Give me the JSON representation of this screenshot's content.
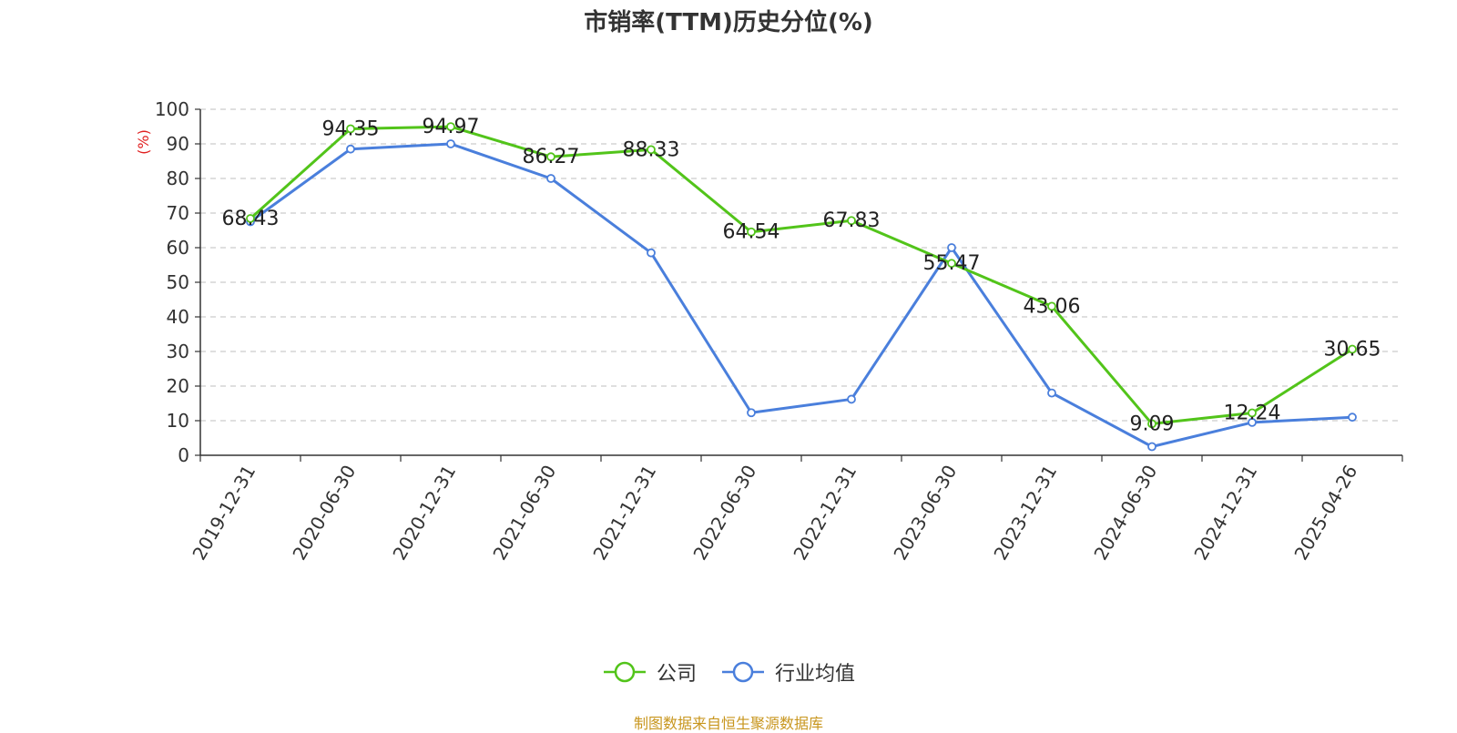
{
  "chart_data": {
    "type": "line",
    "title": "市销率(TTM)历史分位(%)",
    "ylabel": "(%)",
    "xlabel": "",
    "ylim": [
      0,
      100
    ],
    "yticks": [
      0,
      10,
      20,
      30,
      40,
      50,
      60,
      70,
      80,
      90,
      100
    ],
    "grid": true,
    "legend_position": "bottom",
    "categories": [
      "2019-12-31",
      "2020-06-30",
      "2020-12-31",
      "2021-06-30",
      "2021-12-31",
      "2022-06-30",
      "2022-12-31",
      "2023-06-30",
      "2023-12-31",
      "2024-06-30",
      "2024-12-31",
      "2025-04-26"
    ],
    "series": [
      {
        "name": "公司",
        "color": "#52c41a",
        "show_labels": true,
        "values": [
          68.43,
          94.35,
          94.97,
          86.27,
          88.33,
          64.54,
          67.83,
          55.47,
          43.06,
          9.09,
          12.24,
          30.65
        ]
      },
      {
        "name": "行业均值",
        "color": "#4a7fdc",
        "show_labels": false,
        "values": [
          67.5,
          88.5,
          90.0,
          80.0,
          58.5,
          12.3,
          16.2,
          60.0,
          18.0,
          2.5,
          9.5,
          11.0
        ]
      }
    ]
  },
  "source_note": {
    "text": "制图数据来自恒生聚源数据库",
    "color": "#c8961e"
  },
  "colors": {
    "ylabel": "#e02020",
    "axis": "#333333",
    "grid": "#cccccc"
  }
}
